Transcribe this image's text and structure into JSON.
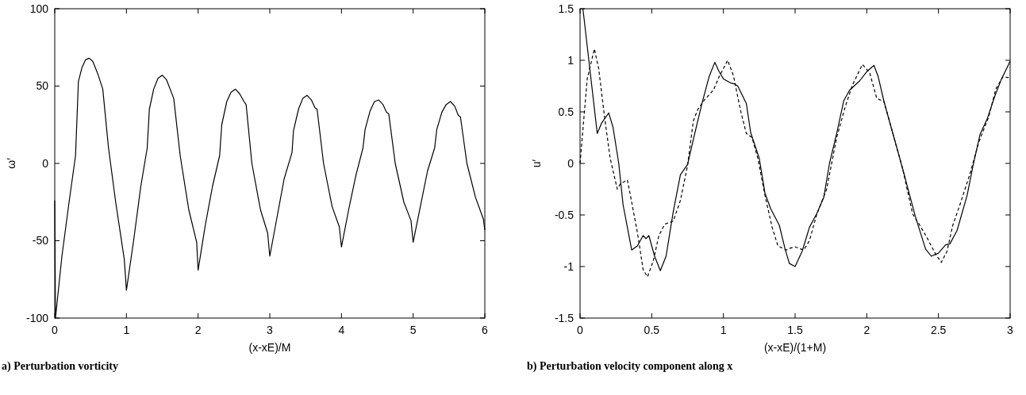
{
  "chart_data": [
    {
      "type": "line",
      "xlabel": "(x-xE)/M",
      "ylabel": "ω′",
      "annotations": [
        "a) Perturbation vorticity"
      ],
      "xlim": [
        0,
        6
      ],
      "xticks": [
        0,
        1,
        2,
        3,
        4,
        5,
        6
      ],
      "ylim": [
        -100,
        100
      ],
      "yticks": [
        -100,
        -50,
        0,
        50,
        100
      ],
      "grid": false,
      "series": [
        {
          "color": "#000000",
          "line_style": "solid",
          "x": [
            0,
            0.01,
            0.1,
            0.2,
            0.29,
            0.33,
            0.38,
            0.43,
            0.48,
            0.53,
            0.6,
            0.67,
            0.75,
            0.85,
            0.97,
            1.0,
            1.1,
            1.2,
            1.29,
            1.32,
            1.38,
            1.44,
            1.5,
            1.56,
            1.66,
            1.75,
            1.87,
            1.98,
            2.0,
            2.1,
            2.2,
            2.3,
            2.33,
            2.4,
            2.46,
            2.52,
            2.58,
            2.64,
            2.67,
            2.75,
            2.87,
            2.97,
            3.0,
            3.1,
            3.2,
            3.31,
            3.33,
            3.4,
            3.46,
            3.52,
            3.58,
            3.63,
            3.66,
            3.75,
            3.87,
            3.97,
            4.0,
            4.1,
            4.2,
            4.3,
            4.33,
            4.4,
            4.46,
            4.52,
            4.58,
            4.63,
            4.66,
            4.75,
            4.87,
            4.97,
            5.0,
            5.1,
            5.2,
            5.3,
            5.33,
            5.4,
            5.46,
            5.52,
            5.58,
            5.63,
            5.66,
            5.75,
            5.87,
            5.98,
            6.0
          ],
          "values": [
            -24,
            -100,
            -60,
            -25,
            5,
            53,
            62,
            67,
            68,
            66,
            58,
            48,
            10,
            -25,
            -62,
            -82,
            -50,
            -15,
            10,
            35,
            48,
            55,
            57,
            54,
            42,
            5,
            -30,
            -51,
            -69,
            -40,
            -15,
            5,
            25,
            40,
            46,
            48,
            45,
            40,
            38,
            0,
            -30,
            -45,
            -60,
            -35,
            -10,
            7,
            21,
            35,
            42,
            44,
            41,
            36,
            35,
            0,
            -28,
            -41,
            -54,
            -30,
            -8,
            10,
            22,
            34,
            40,
            41,
            38,
            33,
            32,
            0,
            -25,
            -37,
            -51,
            -28,
            -5,
            10,
            22,
            33,
            38,
            40,
            37,
            31,
            30,
            0,
            -22,
            -36,
            -43
          ]
        }
      ]
    },
    {
      "type": "line",
      "xlabel": "(x-xE)/(1+M)",
      "ylabel": "u′",
      "annotations": [
        "b) Perturbation velocity component along x"
      ],
      "xlim": [
        0,
        3
      ],
      "xticks": [
        0,
        0.5,
        1,
        1.5,
        2,
        2.5,
        3
      ],
      "ylim": [
        -1.5,
        1.5
      ],
      "yticks": [
        -1.5,
        -1,
        -0.5,
        0,
        0.5,
        1,
        1.5
      ],
      "grid": false,
      "series": [
        {
          "color": "#000000",
          "line_style": "solid",
          "x": [
            0.02,
            0.12,
            0.15,
            0.2,
            0.23,
            0.27,
            0.3,
            0.36,
            0.4,
            0.44,
            0.46,
            0.48,
            0.52,
            0.56,
            0.6,
            0.65,
            0.7,
            0.75,
            0.8,
            0.85,
            0.9,
            0.94,
            0.97,
            1.0,
            1.05,
            1.08,
            1.1,
            1.16,
            1.19,
            1.25,
            1.29,
            1.33,
            1.39,
            1.43,
            1.46,
            1.5,
            1.55,
            1.6,
            1.65,
            1.7,
            1.74,
            1.79,
            1.84,
            1.88,
            1.95,
            2.0,
            2.05,
            2.08,
            2.12,
            2.2,
            2.25,
            2.29,
            2.34,
            2.41,
            2.45,
            2.5,
            2.55,
            2.58,
            2.63,
            2.7,
            2.74,
            2.79,
            2.84,
            2.89,
            2.94,
            3.0
          ],
          "values": [
            1.5,
            0.29,
            0.39,
            0.49,
            0.35,
            0.0,
            -0.4,
            -0.84,
            -0.8,
            -0.7,
            -0.73,
            -0.7,
            -0.9,
            -1.04,
            -0.9,
            -0.47,
            -0.11,
            -0.01,
            0.29,
            0.58,
            0.84,
            0.98,
            0.89,
            0.82,
            0.78,
            0.77,
            0.75,
            0.58,
            0.3,
            0.05,
            -0.29,
            -0.44,
            -0.6,
            -0.83,
            -0.97,
            -1.0,
            -0.85,
            -0.62,
            -0.49,
            -0.33,
            0.0,
            0.29,
            0.61,
            0.71,
            0.8,
            0.89,
            0.95,
            0.84,
            0.6,
            0.2,
            -0.05,
            -0.26,
            -0.52,
            -0.83,
            -0.9,
            -0.87,
            -0.79,
            -0.78,
            -0.65,
            -0.31,
            -0.03,
            0.28,
            0.43,
            0.64,
            0.82,
            0.99
          ]
        },
        {
          "color": "#000000",
          "line_style": "dashed",
          "x": [
            0,
            0.05,
            0.1,
            0.13,
            0.17,
            0.21,
            0.26,
            0.28,
            0.33,
            0.35,
            0.4,
            0.44,
            0.47,
            0.51,
            0.55,
            0.59,
            0.65,
            0.7,
            0.75,
            0.79,
            0.82,
            0.87,
            0.93,
            0.97,
            1.03,
            1.07,
            1.12,
            1.16,
            1.2,
            1.24,
            1.29,
            1.34,
            1.38,
            1.44,
            1.47,
            1.5,
            1.56,
            1.6,
            1.65,
            1.72,
            1.79,
            1.85,
            1.9,
            1.97,
            2.02,
            2.07,
            2.12,
            2.18,
            2.25,
            2.32,
            2.37,
            2.42,
            2.48,
            2.52,
            2.56,
            2.6,
            2.65,
            2.72,
            2.78,
            2.85,
            2.9,
            2.95,
            3.0
          ],
          "values": [
            0,
            0.82,
            1.11,
            0.92,
            0.46,
            0.05,
            -0.25,
            -0.2,
            -0.16,
            -0.3,
            -0.67,
            -1.03,
            -1.1,
            -0.95,
            -0.7,
            -0.59,
            -0.56,
            -0.36,
            -0.02,
            0.41,
            0.52,
            0.62,
            0.71,
            0.84,
            1.0,
            0.85,
            0.51,
            0.29,
            0.25,
            0.05,
            -0.31,
            -0.62,
            -0.8,
            -0.84,
            -0.82,
            -0.81,
            -0.84,
            -0.75,
            -0.5,
            -0.25,
            0.25,
            0.55,
            0.76,
            0.96,
            0.88,
            0.63,
            0.6,
            0.3,
            -0.05,
            -0.49,
            -0.6,
            -0.72,
            -0.88,
            -0.96,
            -0.85,
            -0.6,
            -0.4,
            -0.1,
            0.2,
            0.45,
            0.72,
            0.84,
            0.83
          ]
        }
      ]
    }
  ]
}
